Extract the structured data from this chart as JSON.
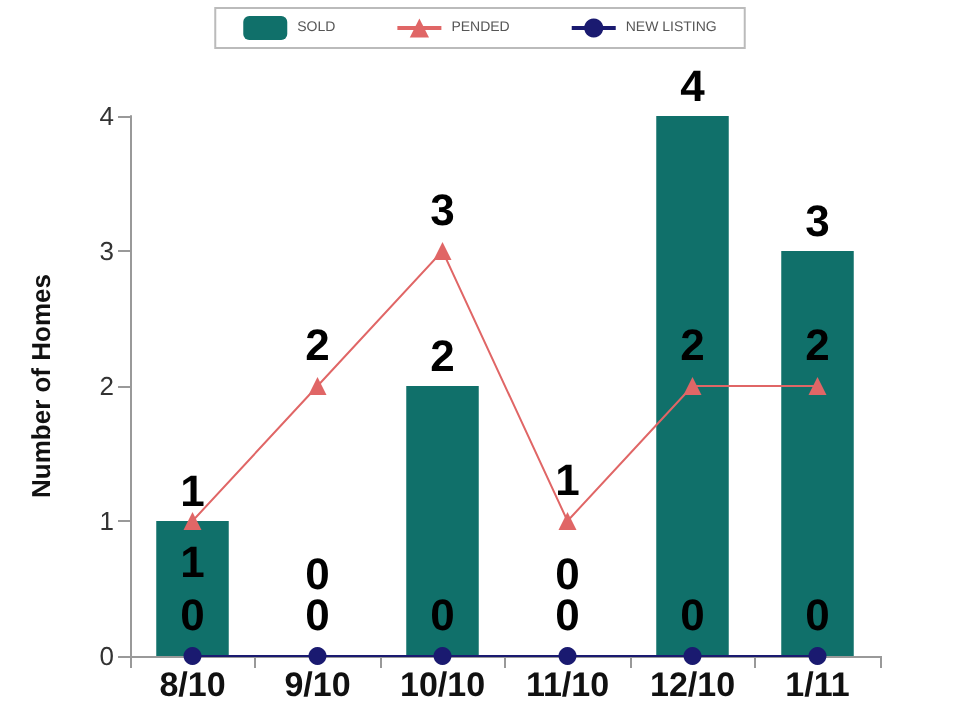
{
  "chart_data": {
    "type": "bar",
    "ylabel": "Number of Homes",
    "categories": [
      "8/10",
      "9/10",
      "10/10",
      "11/10",
      "12/10",
      "1/11"
    ],
    "series": [
      {
        "name": "SOLD",
        "color": "#10706a",
        "values": [
          1,
          0,
          2,
          0,
          4,
          3
        ]
      },
      {
        "name": "PENDED",
        "type": "line",
        "color": "#e06666",
        "marker": "triangle",
        "values": [
          1,
          2,
          3,
          1,
          2,
          2
        ]
      },
      {
        "name": "NEW LISTING",
        "type": "line",
        "color": "#1a1a70",
        "marker": "circle",
        "values": [
          0,
          0,
          0,
          0,
          0,
          0
        ]
      }
    ],
    "ylim": [
      0,
      4
    ],
    "yticks": [
      0,
      1,
      2,
      3,
      4
    ],
    "grid": false,
    "legend": "top",
    "data_labels": true
  }
}
